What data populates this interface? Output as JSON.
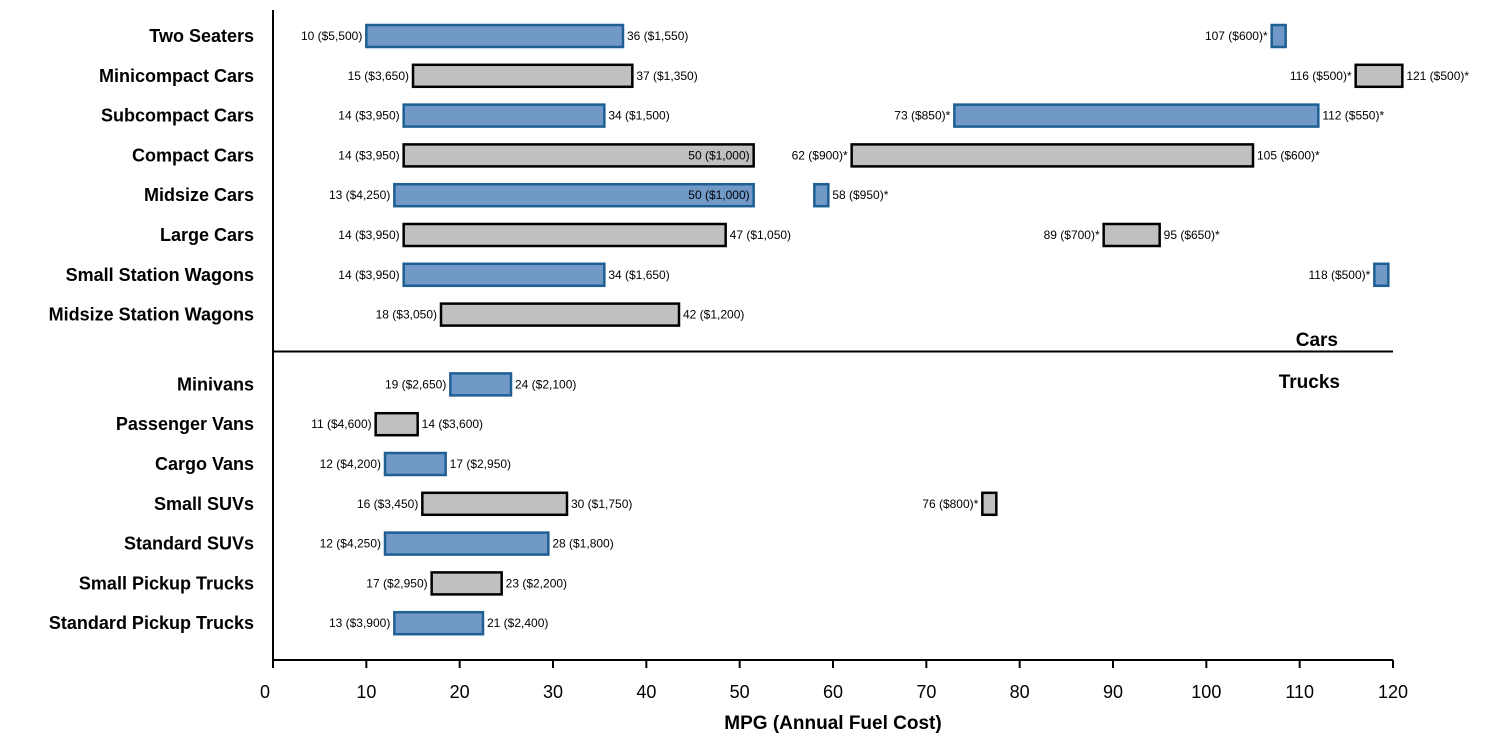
{
  "chart_data": {
    "type": "bar",
    "subtype": "floating-range",
    "xlabel": "MPG (Annual Fuel Cost)",
    "xlim": [
      0,
      120
    ],
    "xticks": [
      0,
      10,
      20,
      30,
      40,
      50,
      60,
      70,
      80,
      90,
      100,
      110,
      120
    ],
    "grid": false,
    "colors": {
      "blue": "#7099c8",
      "blue_border": "#1f5f93",
      "gray": "#c0c0c0",
      "gray_border": "#000000"
    },
    "sections": [
      {
        "label": "Cars"
      },
      {
        "label": "Trucks"
      }
    ],
    "categories": [
      {
        "label": "Two Seaters",
        "section": 0,
        "color": "blue",
        "ranges": [
          {
            "low": 10,
            "high": 37.5,
            "low_label": "10 ($5,500)",
            "high_label": "36 ($1,550)"
          },
          {
            "low": 107,
            "high": 108.5,
            "low_label": "107 ($600)*",
            "high_label": ""
          }
        ]
      },
      {
        "label": "Minicompact Cars",
        "section": 0,
        "color": "gray",
        "ranges": [
          {
            "low": 15,
            "high": 38.5,
            "low_label": "15 ($3,650)",
            "high_label": "37 ($1,350)"
          },
          {
            "low": 116,
            "high": 121,
            "low_label": "116 ($500)*",
            "high_label": "121 ($500)*"
          }
        ]
      },
      {
        "label": "Subcompact Cars",
        "section": 0,
        "color": "blue",
        "ranges": [
          {
            "low": 14,
            "high": 35.5,
            "low_label": "14 ($3,950)",
            "high_label": "34 ($1,500)"
          },
          {
            "low": 73,
            "high": 112,
            "low_label": "73 ($850)*",
            "high_label": "112 ($550)*"
          }
        ]
      },
      {
        "label": "Compact Cars",
        "section": 0,
        "color": "gray",
        "ranges": [
          {
            "low": 14,
            "high": 51.5,
            "low_label": "14 ($3,950)",
            "high_label": "50 ($1,000)",
            "high_inside": true
          },
          {
            "low": 62,
            "high": 105,
            "low_label": "62 ($900)*",
            "high_label": "105 ($600)*"
          }
        ]
      },
      {
        "label": "Midsize Cars",
        "section": 0,
        "color": "blue",
        "ranges": [
          {
            "low": 13,
            "high": 51.5,
            "low_label": "13 ($4,250)",
            "high_label": "50 ($1,000)",
            "high_inside": true
          },
          {
            "low": 58,
            "high": 59.5,
            "low_label": "",
            "high_label": "58 ($950)*"
          }
        ]
      },
      {
        "label": "Large Cars",
        "section": 0,
        "color": "gray",
        "ranges": [
          {
            "low": 14,
            "high": 48.5,
            "low_label": "14 ($3,950)",
            "high_label": "47 ($1,050)"
          },
          {
            "low": 89,
            "high": 95,
            "low_label": "89 ($700)*",
            "high_label": "95 ($650)*"
          }
        ]
      },
      {
        "label": "Small Station Wagons",
        "section": 0,
        "color": "blue",
        "ranges": [
          {
            "low": 14,
            "high": 35.5,
            "low_label": "14 ($3,950)",
            "high_label": "34 ($1,650)"
          },
          {
            "low": 118,
            "high": 119.5,
            "low_label": "118 ($500)*",
            "high_label": ""
          }
        ]
      },
      {
        "label": "Midsize Station Wagons",
        "section": 0,
        "color": "gray",
        "ranges": [
          {
            "low": 18,
            "high": 43.5,
            "low_label": "18 ($3,050)",
            "high_label": "42 ($1,200)"
          }
        ]
      },
      {
        "label": "Minivans",
        "section": 1,
        "color": "blue",
        "ranges": [
          {
            "low": 19,
            "high": 25.5,
            "low_label": "19 ($2,650)",
            "high_label": "24 ($2,100)"
          }
        ]
      },
      {
        "label": "Passenger Vans",
        "section": 1,
        "color": "gray",
        "ranges": [
          {
            "low": 11,
            "high": 15.5,
            "low_label": "11 ($4,600)",
            "high_label": "14 ($3,600)"
          }
        ]
      },
      {
        "label": "Cargo Vans",
        "section": 1,
        "color": "blue",
        "ranges": [
          {
            "low": 12,
            "high": 18.5,
            "low_label": "12 ($4,200)",
            "high_label": "17 ($2,950)"
          }
        ]
      },
      {
        "label": "Small SUVs",
        "section": 1,
        "color": "gray",
        "ranges": [
          {
            "low": 16,
            "high": 31.5,
            "low_label": "16 ($3,450)",
            "high_label": "30 ($1,750)"
          },
          {
            "low": 76,
            "high": 77.5,
            "low_label": "76 ($800)*",
            "high_label": ""
          }
        ]
      },
      {
        "label": "Standard SUVs",
        "section": 1,
        "color": "blue",
        "ranges": [
          {
            "low": 12,
            "high": 29.5,
            "low_label": "12 ($4,250)",
            "high_label": "28 ($1,800)"
          }
        ]
      },
      {
        "label": "Small Pickup Trucks",
        "section": 1,
        "color": "gray",
        "ranges": [
          {
            "low": 17,
            "high": 24.5,
            "low_label": "17 ($2,950)",
            "high_label": "23 ($2,200)"
          }
        ]
      },
      {
        "label": "Standard Pickup Trucks",
        "section": 1,
        "color": "blue",
        "ranges": [
          {
            "low": 13,
            "high": 22.5,
            "low_label": "13 ($3,900)",
            "high_label": "21 ($2,400)"
          }
        ]
      }
    ]
  }
}
